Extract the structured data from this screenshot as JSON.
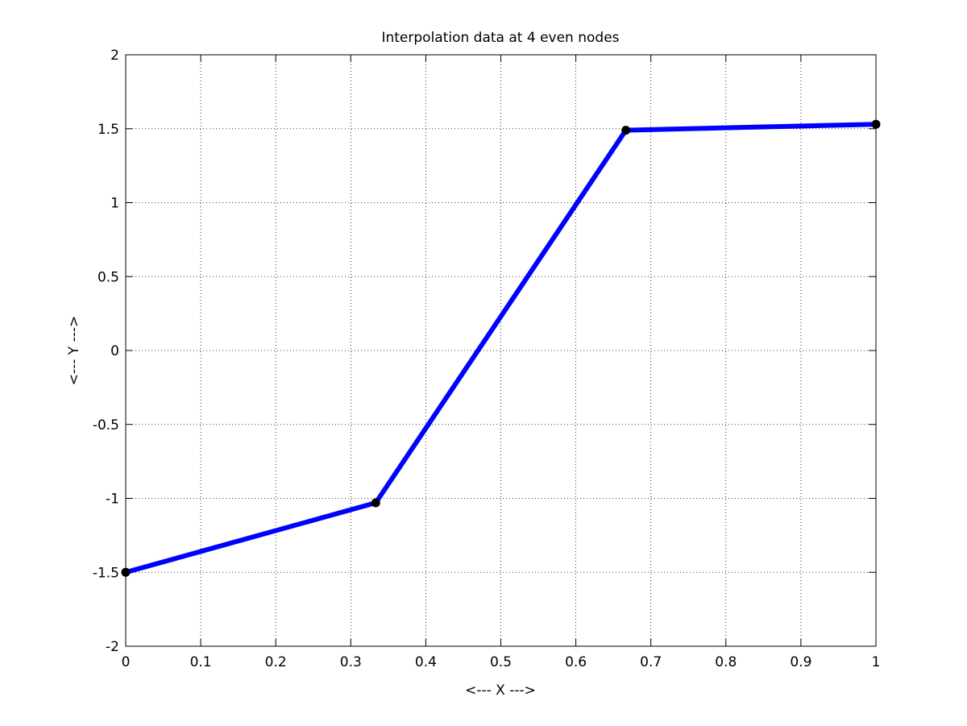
{
  "chart_data": {
    "type": "line",
    "title": "Interpolation data at 4 even nodes",
    "xlabel": "<--- X --->",
    "ylabel": "<--- Y --->",
    "xlim": [
      0,
      1
    ],
    "ylim": [
      -2,
      2
    ],
    "grid": true,
    "x_ticks": [
      0,
      0.1,
      0.2,
      0.3,
      0.4,
      0.5,
      0.6,
      0.7,
      0.8,
      0.9,
      1
    ],
    "x_tick_labels": [
      "0",
      "0.1",
      "0.2",
      "0.3",
      "0.4",
      "0.5",
      "0.6",
      "0.7",
      "0.8",
      "0.9",
      "1"
    ],
    "y_ticks": [
      -2,
      -1.5,
      -1,
      -0.5,
      0,
      0.5,
      1,
      1.5,
      2
    ],
    "y_tick_labels": [
      "-2",
      "-1.5",
      "-1",
      "-0.5",
      "0",
      "0.5",
      "1",
      "1.5",
      "2"
    ],
    "series": [
      {
        "x": [
          0,
          0.3333,
          0.6667,
          1
        ],
        "y": [
          -1.5,
          -1.03,
          1.49,
          1.53
        ],
        "line_color": "#0000ff",
        "marker_color": "#000000",
        "marker": "dot"
      }
    ]
  }
}
